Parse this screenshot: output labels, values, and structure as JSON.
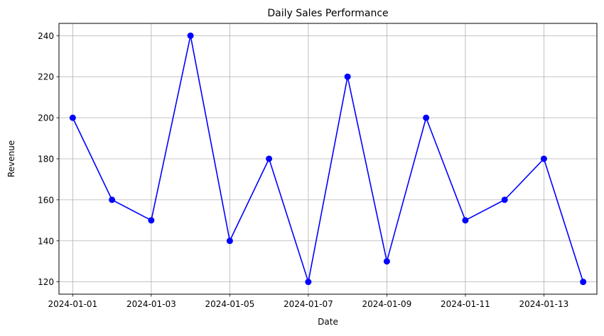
{
  "chart_data": {
    "type": "line",
    "title": "Daily Sales Performance",
    "xlabel": "Date",
    "ylabel": "Revenue",
    "x": [
      "2024-01-01",
      "2024-01-02",
      "2024-01-03",
      "2024-01-04",
      "2024-01-05",
      "2024-01-06",
      "2024-01-07",
      "2024-01-08",
      "2024-01-09",
      "2024-01-10",
      "2024-01-11",
      "2024-01-12",
      "2024-01-13",
      "2024-01-14"
    ],
    "series": [
      {
        "values": [
          200,
          160,
          150,
          240,
          140,
          180,
          120,
          220,
          130,
          200,
          150,
          160,
          180,
          120
        ],
        "color": "#0000ff",
        "marker": "circle"
      }
    ],
    "xticks": [
      "2024-01-01",
      "2024-01-03",
      "2024-01-05",
      "2024-01-07",
      "2024-01-09",
      "2024-01-11",
      "2024-01-13"
    ],
    "yticks": [
      120,
      140,
      160,
      180,
      200,
      220,
      240
    ],
    "xlim": [
      "2023-12-31T15:36",
      "2024-01-14T08:24"
    ],
    "ylim": [
      114,
      246
    ],
    "grid": true,
    "grid_color": "#b0b0b0"
  }
}
